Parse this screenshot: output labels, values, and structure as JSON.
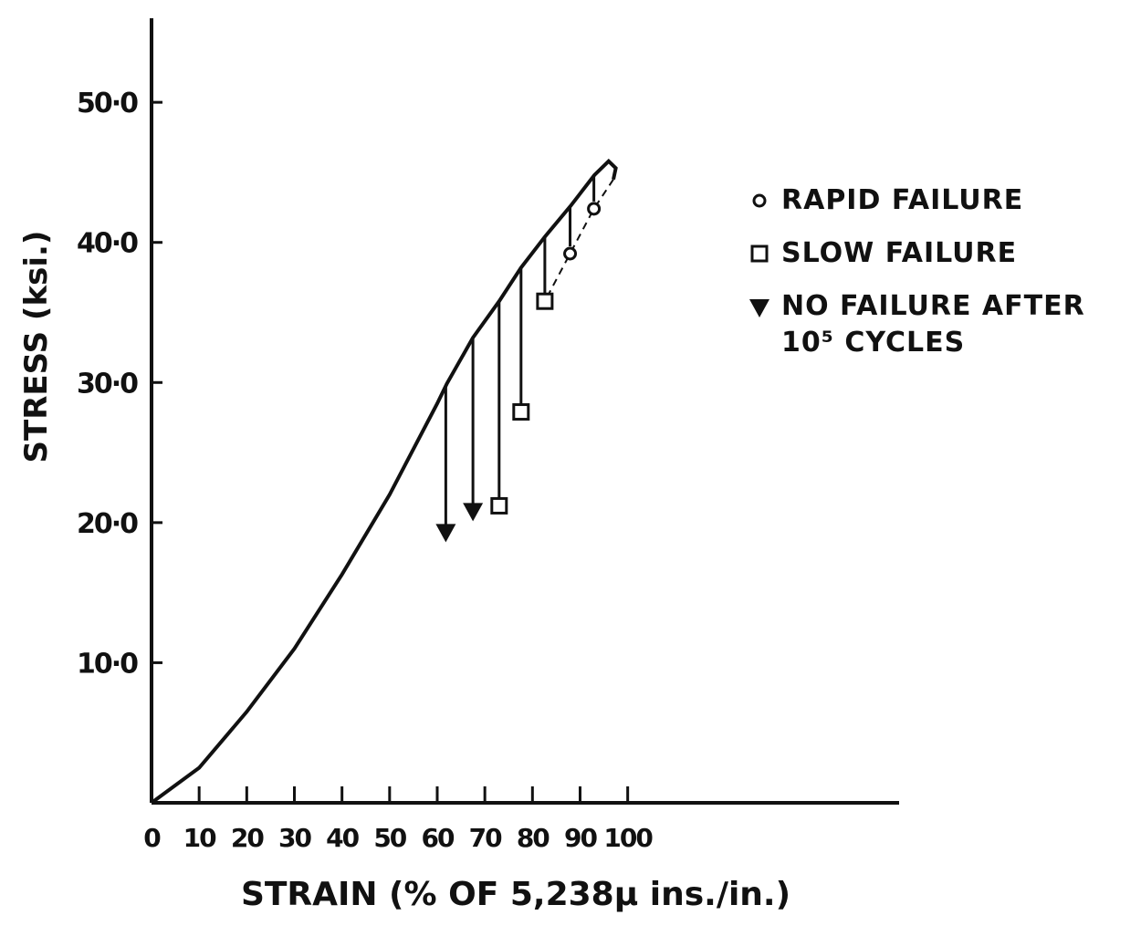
{
  "chart_data": {
    "type": "line",
    "xlabel": "STRAIN (% OF 5,238μ ins./in.)",
    "ylabel": "STRESS (ksi.)",
    "xlim": [
      0,
      157
    ],
    "ylim": [
      0,
      56
    ],
    "xticks": [
      0,
      10,
      20,
      30,
      40,
      50,
      60,
      70,
      80,
      90,
      100
    ],
    "yticks": [
      {
        "value": 10,
        "label": "10·0"
      },
      {
        "value": 20,
        "label": "20·0"
      },
      {
        "value": 30,
        "label": "30·0"
      },
      {
        "value": 40,
        "label": "40·0"
      },
      {
        "value": 50,
        "label": "50·0"
      }
    ],
    "curve": {
      "x": [
        0,
        10,
        20,
        30,
        40,
        50,
        60,
        62,
        67.5,
        73,
        77.6,
        82.6,
        88,
        93,
        96,
        97.5,
        97
      ],
      "values": [
        0,
        2.5,
        6.5,
        11,
        16.3,
        22,
        28.5,
        29.9,
        33.2,
        35.8,
        38.2,
        40.4,
        42.6,
        44.8,
        45.8,
        45.3,
        44.5
      ],
      "color": "#111"
    },
    "series": [
      {
        "name": "RAPID FAILURE",
        "marker": "circle",
        "x": [
          92.9,
          87.9
        ],
        "values": [
          42.4,
          39.2
        ]
      },
      {
        "name": "SLOW FAILURE",
        "marker": "square",
        "x": [
          82.6,
          77.6,
          73.0
        ],
        "values": [
          35.8,
          27.9,
          21.2
        ]
      },
      {
        "name": "NO FAILURE AFTER 10⁵ CYCLES",
        "marker": "arrow",
        "x": [
          61.8,
          67.5
        ],
        "values": [
          18.6,
          20.1
        ]
      }
    ]
  }
}
